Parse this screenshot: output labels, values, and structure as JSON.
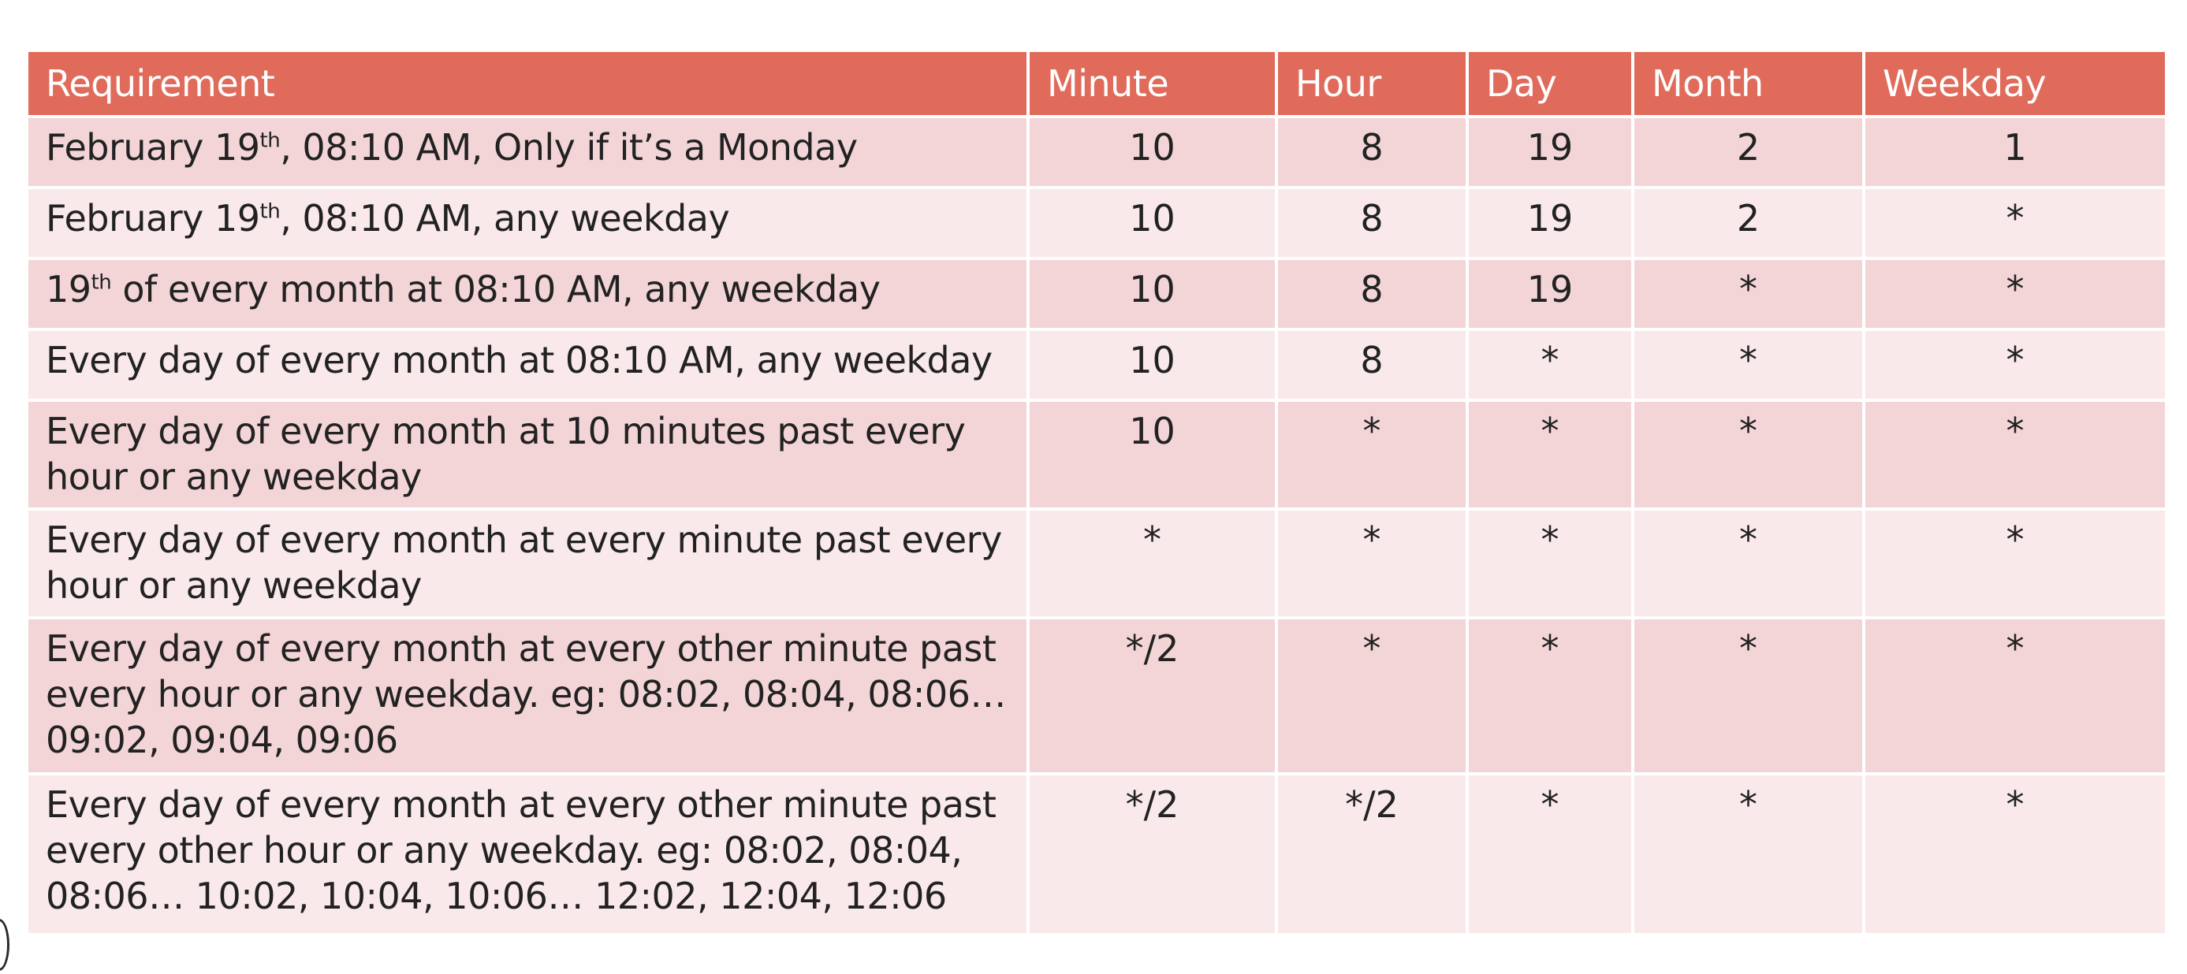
{
  "table": {
    "headers": [
      "Requirement",
      "Minute",
      "Hour",
      "Day",
      "Month",
      "Weekday"
    ],
    "rows": [
      {
        "req_pre": "February 19",
        "sup": "th",
        "req_post": ", 08:10 AM, Only if it’s a Monday",
        "minute": "10",
        "hour": "8",
        "day": "19",
        "month": "2",
        "weekday": "1"
      },
      {
        "req_pre": "February 19",
        "sup": "th",
        "req_post": ", 08:10 AM, any weekday",
        "minute": "10",
        "hour": "8",
        "day": "19",
        "month": "2",
        "weekday": "*"
      },
      {
        "req_pre": "19",
        "sup": "th",
        "req_post": " of every month at 08:10 AM, any weekday",
        "minute": "10",
        "hour": "8",
        "day": "19",
        "month": "*",
        "weekday": "*"
      },
      {
        "req_pre": "Every day of every month at 08:10 AM, any weekday",
        "sup": "",
        "req_post": "",
        "minute": "10",
        "hour": "8",
        "day": "*",
        "month": "*",
        "weekday": "*"
      },
      {
        "req_pre": "Every day of every month at 10 minutes past every hour or any weekday",
        "sup": "",
        "req_post": "",
        "minute": "10",
        "hour": "*",
        "day": "*",
        "month": "*",
        "weekday": "*"
      },
      {
        "req_pre": "Every day of every month at every minute past every hour or any weekday",
        "sup": "",
        "req_post": "",
        "minute": "*",
        "hour": "*",
        "day": "*",
        "month": "*",
        "weekday": "*"
      },
      {
        "req_pre": "Every day of every month at every other minute past every hour or any weekday. eg: 08:02, 08:04, 08:06… 09:02, 09:04, 09:06",
        "sup": "",
        "req_post": "",
        "minute": "*/2",
        "hour": "*",
        "day": "*",
        "month": "*",
        "weekday": "*"
      },
      {
        "req_pre": "Every day of every month at every other minute past every other hour or any weekday. eg: 08:02, 08:04, 08:06… 10:02, 10:04, 10:06… 12:02, 12:04, 12:06",
        "sup": "",
        "req_post": "",
        "minute": "*/2",
        "hour": "*/2",
        "day": "*",
        "month": "*",
        "weekday": "*"
      }
    ]
  },
  "colors": {
    "header_bg": "#e06b5b",
    "row_odd": "#f3d5d7",
    "row_even": "#f9e9ea"
  }
}
